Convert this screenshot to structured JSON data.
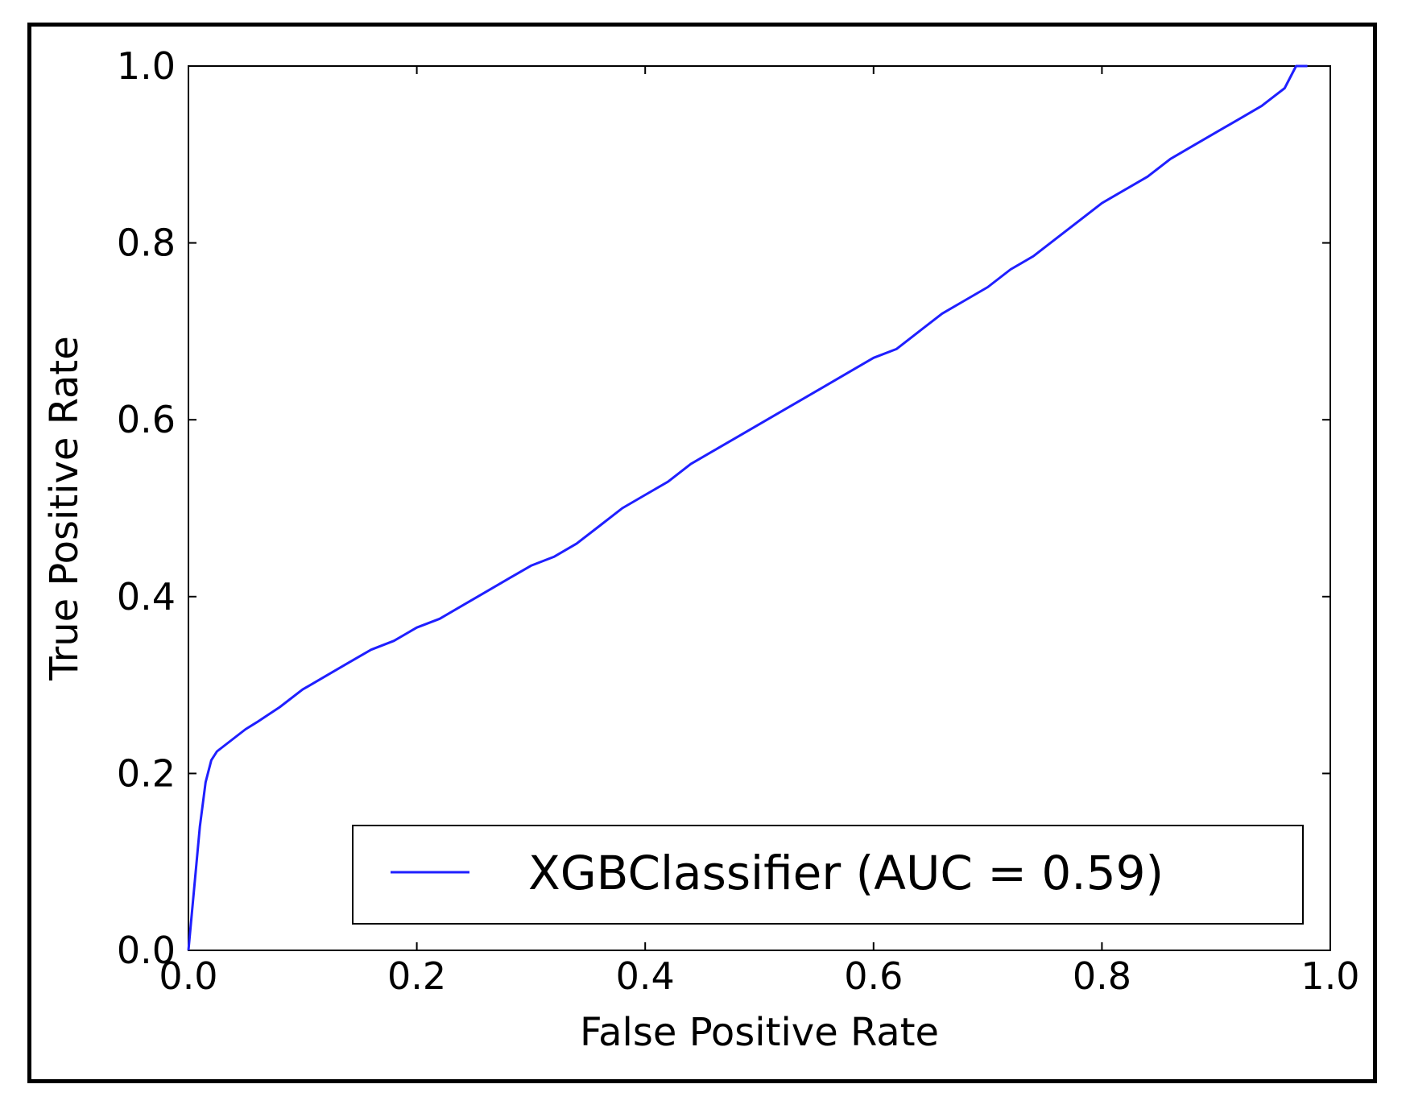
{
  "chart_data": {
    "type": "line",
    "title": "",
    "xlabel": "False Positive Rate",
    "ylabel": "True Positive Rate",
    "xlim": [
      0.0,
      1.0
    ],
    "ylim": [
      0.0,
      1.0
    ],
    "xticks": [
      "0.0",
      "0.2",
      "0.4",
      "0.6",
      "0.8",
      "1.0"
    ],
    "yticks": [
      "0.0",
      "0.2",
      "0.4",
      "0.6",
      "0.8",
      "1.0"
    ],
    "grid": false,
    "legend": {
      "position": "lower-right",
      "entries": [
        "XGBClassifier (AUC = 0.59)"
      ]
    },
    "series": [
      {
        "name": "XGBClassifier (AUC = 0.59)",
        "color": "#1f1fff",
        "x": [
          0.0,
          0.005,
          0.01,
          0.015,
          0.02,
          0.025,
          0.03,
          0.04,
          0.05,
          0.06,
          0.08,
          0.1,
          0.12,
          0.14,
          0.16,
          0.18,
          0.2,
          0.22,
          0.24,
          0.26,
          0.28,
          0.3,
          0.32,
          0.34,
          0.36,
          0.38,
          0.4,
          0.42,
          0.44,
          0.46,
          0.48,
          0.5,
          0.52,
          0.54,
          0.56,
          0.58,
          0.6,
          0.62,
          0.64,
          0.66,
          0.68,
          0.7,
          0.72,
          0.74,
          0.76,
          0.78,
          0.8,
          0.82,
          0.84,
          0.86,
          0.88,
          0.9,
          0.92,
          0.94,
          0.95,
          0.96,
          0.97,
          0.98
        ],
        "y": [
          0.0,
          0.07,
          0.14,
          0.19,
          0.215,
          0.225,
          0.23,
          0.24,
          0.25,
          0.258,
          0.275,
          0.295,
          0.31,
          0.325,
          0.34,
          0.35,
          0.365,
          0.375,
          0.39,
          0.405,
          0.42,
          0.435,
          0.445,
          0.46,
          0.48,
          0.5,
          0.515,
          0.53,
          0.55,
          0.565,
          0.58,
          0.595,
          0.61,
          0.625,
          0.64,
          0.655,
          0.67,
          0.68,
          0.7,
          0.72,
          0.735,
          0.75,
          0.77,
          0.785,
          0.805,
          0.825,
          0.845,
          0.86,
          0.875,
          0.895,
          0.91,
          0.925,
          0.94,
          0.955,
          0.965,
          0.975,
          1.0,
          1.0
        ]
      }
    ]
  }
}
